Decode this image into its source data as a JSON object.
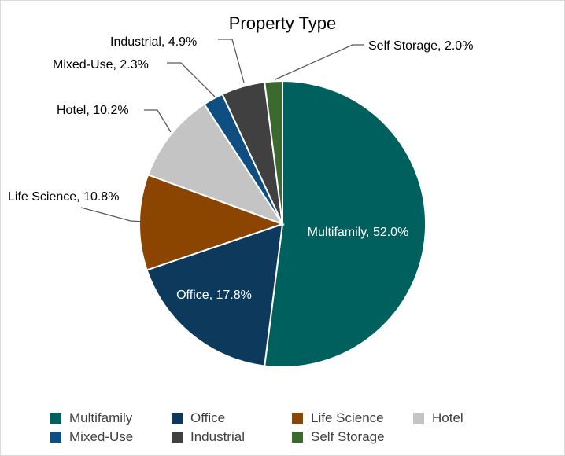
{
  "chart_data": {
    "type": "pie",
    "title": "Property Type",
    "start_angle_deg": 0,
    "direction": "clockwise",
    "slices": [
      {
        "name": "Multifamily",
        "value": 52.0,
        "label": "Multifamily, 52.0%",
        "color": "#00605E",
        "label_style": "inside"
      },
      {
        "name": "Office",
        "value": 17.8,
        "label": "Office, 17.8%",
        "color": "#0D3A5C",
        "label_style": "inside"
      },
      {
        "name": "Life Science",
        "value": 10.8,
        "label": "Life Science, 10.8%",
        "color": "#8B4500",
        "label_style": "outside"
      },
      {
        "name": "Hotel",
        "value": 10.2,
        "label": "Hotel, 10.2%",
        "color": "#C4C4C4",
        "label_style": "outside"
      },
      {
        "name": "Mixed-Use",
        "value": 2.3,
        "label": "Mixed-Use, 2.3%",
        "color": "#0E4E80",
        "label_style": "outside"
      },
      {
        "name": "Industrial",
        "value": 4.9,
        "label": "Industrial, 4.9%",
        "color": "#404040",
        "label_style": "outside"
      },
      {
        "name": "Self Storage",
        "value": 2.0,
        "label": "Self Storage, 2.0%",
        "color": "#3B6B2C",
        "label_style": "outside"
      }
    ],
    "legend": {
      "position": "bottom",
      "rows": [
        [
          "Multifamily",
          "Office",
          "Life Science",
          "Hotel"
        ],
        [
          "Mixed-Use",
          "Industrial",
          "Self Storage"
        ]
      ]
    }
  }
}
